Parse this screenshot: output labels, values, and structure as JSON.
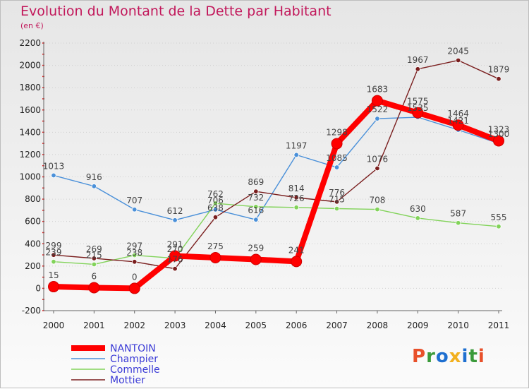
{
  "header": {
    "title": "Evolution du Montant de la Dette par Habitant",
    "unit": "(en €)"
  },
  "logo": {
    "letters": [
      "P",
      "r",
      "o",
      "x",
      "i",
      "t",
      "i"
    ]
  },
  "colors": {
    "title": "#c2185b",
    "legend_text": "#3a3ad6",
    "logo": [
      "#e8502a",
      "#3a9a3a",
      "#1e6fd0",
      "#f2b01e",
      "#1e6fd0",
      "#3a9a3a",
      "#e8502a"
    ]
  },
  "chart_data": {
    "type": "line",
    "title": "Evolution du Montant de la Dette par Habitant",
    "ylabel": "(en €)",
    "x": [
      "2000",
      "2001",
      "2002",
      "2003",
      "2004",
      "2005",
      "2006",
      "2007",
      "2008",
      "2009",
      "2010",
      "2011"
    ],
    "ylim": [
      -200,
      2200
    ],
    "yticks": [
      -200,
      0,
      200,
      400,
      600,
      800,
      1000,
      1200,
      1400,
      1600,
      1800,
      2000,
      2200
    ],
    "grid": "horizontal",
    "legend": "bottom-left",
    "series": [
      {
        "name": "NANTOIN",
        "color": "#ff0000",
        "values": [
          15,
          6,
          0,
          291,
          275,
          259,
          241,
          1298,
          1683,
          1575,
          1464,
          1323
        ],
        "marker": "big"
      },
      {
        "name": "Champier",
        "color": "#4a90d9",
        "values": [
          1013,
          916,
          707,
          612,
          706,
          616,
          1197,
          1085,
          1522,
          1535,
          1421,
          1300
        ],
        "marker": "small"
      },
      {
        "name": "Commelle",
        "color": "#82d35a",
        "values": [
          239,
          215,
          297,
          270,
          762,
          732,
          726,
          715,
          708,
          630,
          587,
          555
        ],
        "marker": "small"
      },
      {
        "name": "Mottier",
        "color": "#7a1e1e",
        "values": [
          299,
          269,
          238,
          176,
          638,
          869,
          814,
          776,
          1076,
          1967,
          2045,
          1879
        ],
        "marker": "small"
      }
    ]
  }
}
